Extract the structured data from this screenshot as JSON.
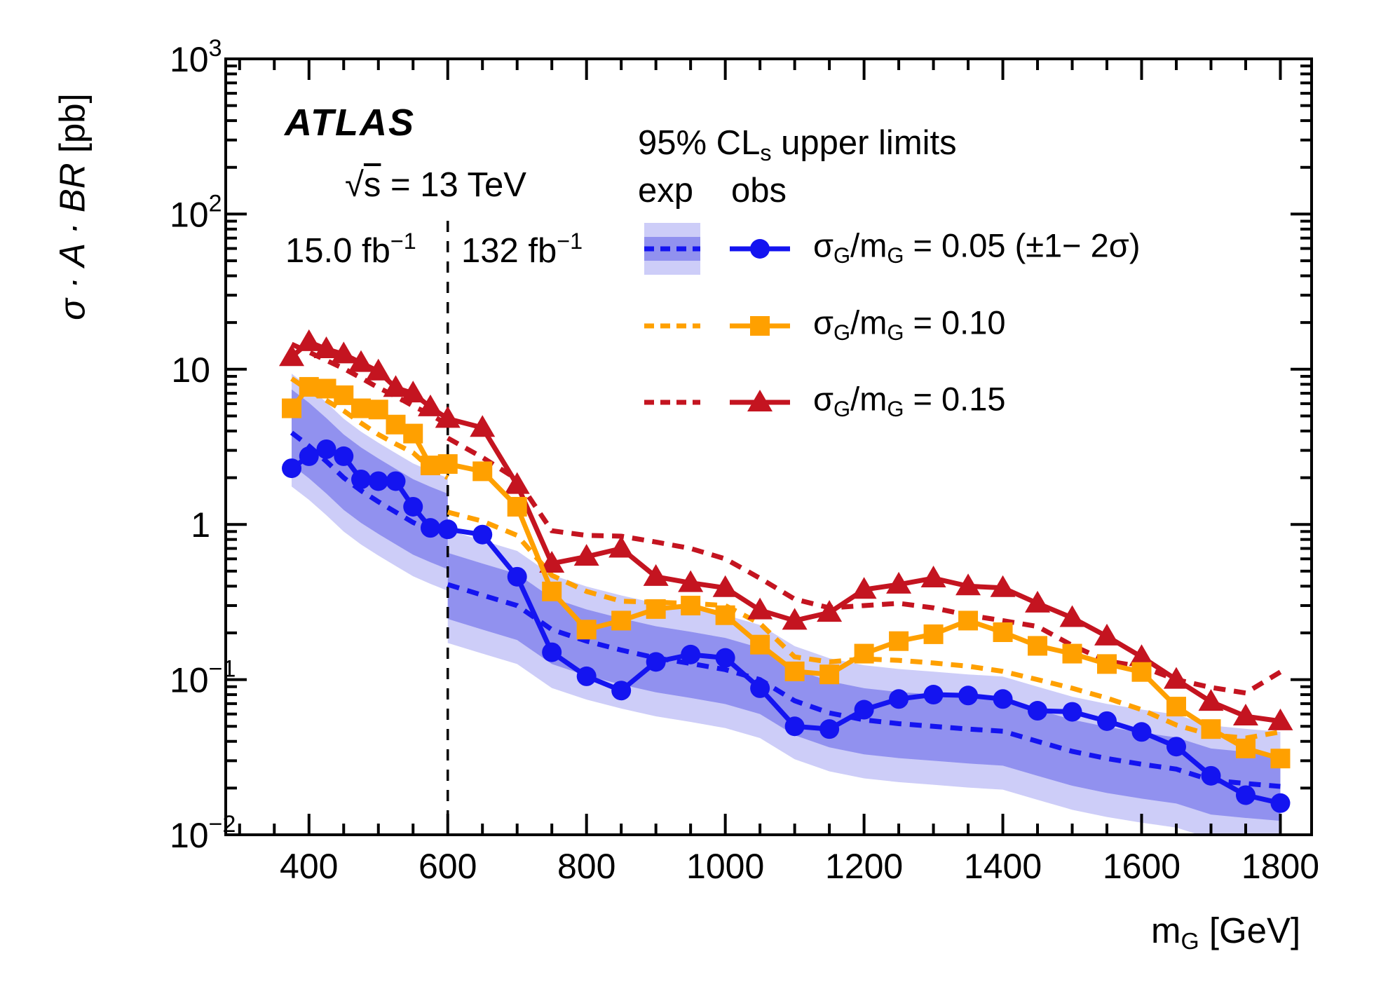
{
  "header": {
    "experiment": "ATLAS",
    "energy_parts": [
      {
        "t": "√"
      },
      {
        "t": "s",
        "pos": "over"
      },
      {
        "t": " = 13 TeV"
      }
    ],
    "lumi_low_parts": [
      {
        "t": "15.0 fb"
      },
      {
        "t": "−1",
        "pos": "sup"
      }
    ],
    "lumi_high_parts": [
      {
        "t": "132 fb"
      },
      {
        "t": "−1",
        "pos": "sup"
      }
    ]
  },
  "legend": {
    "title_parts": [
      {
        "t": "95% CL"
      },
      {
        "t": "s",
        "pos": "sub"
      },
      {
        "t": " upper limits"
      }
    ],
    "col_exp": "exp",
    "col_obs": "obs",
    "entries": [
      {
        "label_parts": [
          {
            "t": "σ"
          },
          {
            "t": "G",
            "pos": "sub"
          },
          {
            "t": "/m"
          },
          {
            "t": "G",
            "pos": "sub"
          },
          {
            "t": " = 0.05 (±1− 2σ)"
          }
        ]
      },
      {
        "label_parts": [
          {
            "t": "σ"
          },
          {
            "t": "G",
            "pos": "sub"
          },
          {
            "t": "/m"
          },
          {
            "t": "G",
            "pos": "sub"
          },
          {
            "t": " = 0.10"
          }
        ]
      },
      {
        "label_parts": [
          {
            "t": "σ"
          },
          {
            "t": "G",
            "pos": "sub"
          },
          {
            "t": "/m"
          },
          {
            "t": "G",
            "pos": "sub"
          },
          {
            "t": " = 0.15"
          }
        ]
      }
    ]
  },
  "axes": {
    "y_title_parts": [
      {
        "t": "σ · A · BR",
        "pos": "i"
      },
      {
        "t": " [pb]"
      }
    ],
    "x_title_parts": [
      {
        "t": "m"
      },
      {
        "t": "G",
        "pos": "sub"
      },
      {
        "t": " [GeV]"
      }
    ]
  },
  "chart_data": {
    "type": "line",
    "log_y": true,
    "grid": false,
    "legend_position": "top-right-inside",
    "x_axis": {
      "title": "m_G [GeV]",
      "range_gev": [
        280,
        1845
      ],
      "major_ticks": [
        400,
        600,
        800,
        1000,
        1200,
        1400,
        1600,
        1800
      ],
      "minor_step_gev": 50
    },
    "y_axis": {
      "title": "sigma x A x BR [pb]",
      "range_pb": [
        0.01,
        1000
      ],
      "tick_labels": [
        {
          "value": 1000,
          "base": "10",
          "sup": "3"
        },
        {
          "value": 100,
          "base": "10",
          "sup": "2"
        },
        {
          "value": 10,
          "base": "10",
          "sup": ""
        },
        {
          "value": 1,
          "base": "1",
          "sup": ""
        },
        {
          "value": 0.1,
          "base": "10",
          "sup": "−1"
        },
        {
          "value": 0.01,
          "base": "10",
          "sup": "−2"
        }
      ]
    },
    "vertical_dashed_line_x_gev": 600,
    "luminosity_regions": [
      {
        "label": "15.0 fb^-1",
        "below_gev": 600
      },
      {
        "label": "132 fb^-1",
        "above_gev": 600
      }
    ],
    "masses_observed_gev": [
      375,
      400,
      425,
      450,
      475,
      500,
      525,
      550,
      575,
      600,
      650,
      700,
      750,
      800,
      850,
      900,
      950,
      1000,
      1050,
      1100,
      1150,
      1200,
      1250,
      1300,
      1350,
      1400,
      1450,
      1500,
      1550,
      1600,
      1650,
      1700,
      1750,
      1800
    ],
    "masses_expected_low_gev": [
      375,
      400,
      425,
      450,
      475,
      500,
      525,
      550,
      575,
      600
    ],
    "masses_expected_high_gev": [
      600,
      650,
      700,
      750,
      800,
      850,
      900,
      950,
      1000,
      1050,
      1100,
      1150,
      1200,
      1250,
      1300,
      1350,
      1400,
      1450,
      1500,
      1550,
      1600,
      1650,
      1700,
      1750,
      1800
    ],
    "series": [
      {
        "id": "width_0p05",
        "label": "sigma_G/m_G = 0.05",
        "color": "#1414f0",
        "marker": "circle",
        "observed_pb": [
          2.3,
          2.75,
          3.05,
          2.75,
          1.95,
          1.9,
          1.9,
          1.3,
          0.95,
          0.93,
          0.86,
          0.46,
          0.15,
          0.105,
          0.085,
          0.13,
          0.145,
          0.138,
          0.088,
          0.05,
          0.048,
          0.064,
          0.075,
          0.08,
          0.079,
          0.075,
          0.063,
          0.062,
          0.054,
          0.046,
          0.037,
          0.024,
          0.018,
          0.016
        ],
        "expected_low_pb": [
          3.9,
          3.2,
          2.55,
          2.0,
          1.65,
          1.4,
          1.2,
          1.03,
          0.92,
          0.83
        ],
        "expected_high_pb": [
          0.41,
          0.35,
          0.3,
          0.21,
          0.177,
          0.155,
          0.138,
          0.127,
          0.116,
          0.1,
          0.073,
          0.061,
          0.055,
          0.052,
          0.05,
          0.048,
          0.0465,
          0.04,
          0.0345,
          0.031,
          0.0285,
          0.0265,
          0.0225,
          0.0214,
          0.0205
        ],
        "band": {
          "inner_color": "#9191ef",
          "outer_color": "#cdcdf8",
          "factors_low": {
            "one_sigma": [
              1.9,
              0.62
            ],
            "two_sigma": [
              2.4,
              0.45
            ]
          },
          "factors_high": {
            "one_sigma": [
              1.6,
              0.6
            ],
            "two_sigma": [
              2.25,
              0.42
            ]
          }
        }
      },
      {
        "id": "width_0p10",
        "label": "sigma_G/m_G = 0.10",
        "color": "#ffa000",
        "marker": "square",
        "observed_pb": [
          5.6,
          7.7,
          7.5,
          6.8,
          5.6,
          5.5,
          4.4,
          3.85,
          2.4,
          2.45,
          2.2,
          1.3,
          0.37,
          0.21,
          0.24,
          0.285,
          0.3,
          0.26,
          0.168,
          0.113,
          0.108,
          0.147,
          0.177,
          0.196,
          0.24,
          0.202,
          0.165,
          0.147,
          0.126,
          0.112,
          0.067,
          0.048,
          0.036,
          0.031
        ],
        "expected_low_pb": [
          8.7,
          7.3,
          6.3,
          5.4,
          4.5,
          3.8,
          3.3,
          2.9,
          2.3,
          2.0
        ],
        "expected_high_pb": [
          1.2,
          1.05,
          0.85,
          0.47,
          0.37,
          0.32,
          0.315,
          0.31,
          0.3,
          0.23,
          0.14,
          0.13,
          0.136,
          0.133,
          0.128,
          0.122,
          0.113,
          0.1,
          0.088,
          0.076,
          0.064,
          0.051,
          0.044,
          0.042,
          0.046
        ]
      },
      {
        "id": "width_0p15",
        "label": "sigma_G/m_G = 0.15",
        "color": "#c41420",
        "marker": "triangle",
        "observed_pb": [
          12,
          15,
          13.5,
          12.5,
          11,
          9.7,
          7.6,
          7.0,
          5.7,
          4.8,
          4.2,
          1.8,
          0.56,
          0.62,
          0.7,
          0.46,
          0.42,
          0.39,
          0.28,
          0.24,
          0.27,
          0.38,
          0.41,
          0.45,
          0.4,
          0.39,
          0.31,
          0.25,
          0.19,
          0.14,
          0.1,
          0.072,
          0.058,
          0.054
        ],
        "expected_low_pb": [
          14.5,
          12.9,
          11.4,
          10.1,
          8.8,
          7.6,
          6.7,
          5.8,
          5.1,
          4.4
        ],
        "expected_high_pb": [
          3.6,
          2.7,
          1.95,
          0.91,
          0.85,
          0.84,
          0.77,
          0.7,
          0.6,
          0.45,
          0.33,
          0.29,
          0.3,
          0.31,
          0.29,
          0.26,
          0.24,
          0.22,
          0.166,
          0.132,
          0.121,
          0.1,
          0.089,
          0.082,
          0.112
        ]
      }
    ]
  }
}
